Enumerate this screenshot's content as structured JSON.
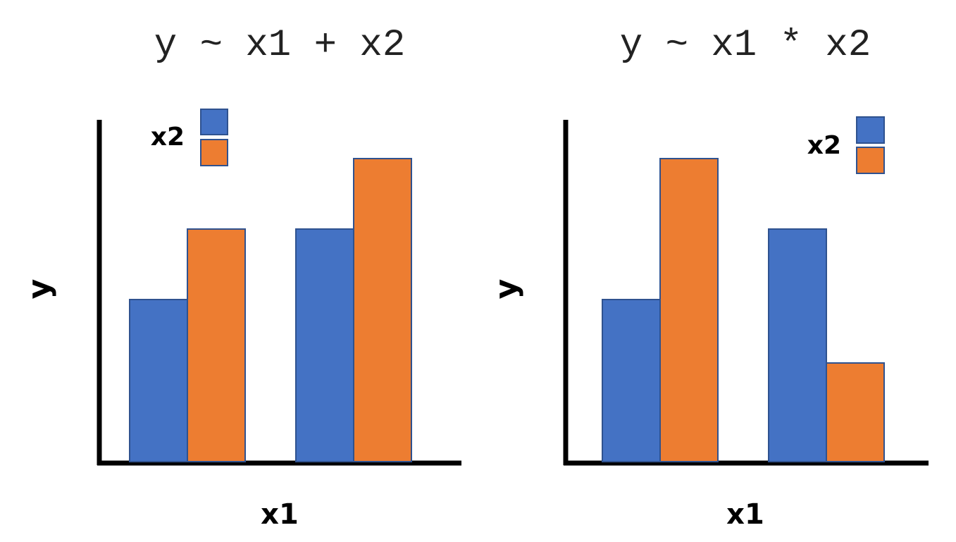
{
  "colors": {
    "blue": "#4472C4",
    "orange": "#ED7D31",
    "border": "#2F528F",
    "axis": "#000000"
  },
  "chart_data": [
    {
      "type": "bar",
      "title": "y ~ x1 + x2",
      "xlabel": "x1",
      "ylabel": "y",
      "legend": {
        "title": "x2",
        "placement": "top-left"
      },
      "categories": [
        "",
        ""
      ],
      "series": [
        {
          "values": [
            2.3,
            3.3
          ]
        },
        {
          "values": [
            3.3,
            4.3
          ]
        }
      ],
      "ylim": [
        0,
        5
      ]
    },
    {
      "type": "bar",
      "title": "y ~ x1 * x2",
      "xlabel": "x1",
      "ylabel": "y",
      "legend": {
        "title": "x2",
        "placement": "top-right"
      },
      "categories": [
        "",
        ""
      ],
      "series": [
        {
          "values": [
            2.3,
            3.3
          ]
        },
        {
          "values": [
            4.3,
            1.4
          ]
        }
      ],
      "ylim": [
        0,
        5
      ]
    }
  ]
}
